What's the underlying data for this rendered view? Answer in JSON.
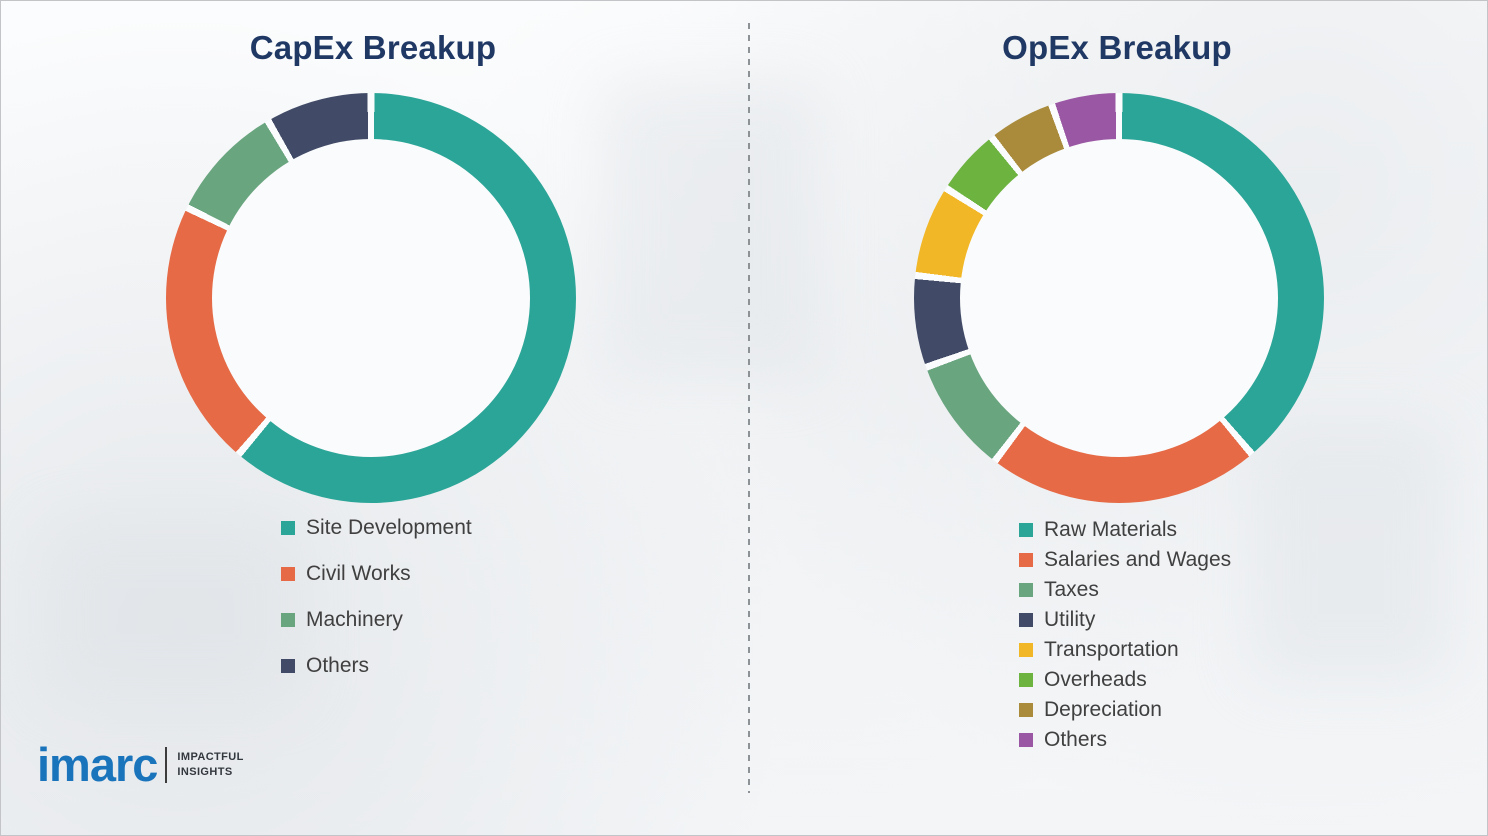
{
  "capex": {
    "title": "CapEx Breakup"
  },
  "opex": {
    "title": "OpEx Breakup"
  },
  "logo": {
    "brand": "imarc",
    "tagline_line1": "IMPACTFUL",
    "tagline_line2": "INSIGHTS"
  },
  "chart_data": [
    {
      "type": "pie",
      "variant": "donut",
      "title": "CapEx Breakup",
      "legend_position": "below",
      "start_angle_deg": 0,
      "segments": [
        {
          "label": "Site Development",
          "value": 62,
          "color": "#2ba597"
        },
        {
          "label": "Civil Works",
          "value": 21,
          "color": "#e56a45"
        },
        {
          "label": "Machinery",
          "value": 9,
          "color": "#69a57f"
        },
        {
          "label": "Others",
          "value": 8,
          "color": "#414b67"
        }
      ]
    },
    {
      "type": "pie",
      "variant": "donut",
      "title": "OpEx Breakup",
      "legend_position": "below",
      "start_angle_deg": 0,
      "segments": [
        {
          "label": "Raw Materials",
          "value": 40,
          "color": "#2ba597"
        },
        {
          "label": "Salaries and Wages",
          "value": 22,
          "color": "#e56a45"
        },
        {
          "label": "Taxes",
          "value": 9,
          "color": "#69a57f"
        },
        {
          "label": "Utility",
          "value": 7,
          "color": "#414b67"
        },
        {
          "label": "Transportation",
          "value": 7,
          "color": "#f2b727"
        },
        {
          "label": "Overheads",
          "value": 5,
          "color": "#6db33f"
        },
        {
          "label": "Depreciation",
          "value": 5,
          "color": "#a98b3b"
        },
        {
          "label": "Others",
          "value": 5,
          "color": "#9a57a3"
        }
      ]
    }
  ]
}
